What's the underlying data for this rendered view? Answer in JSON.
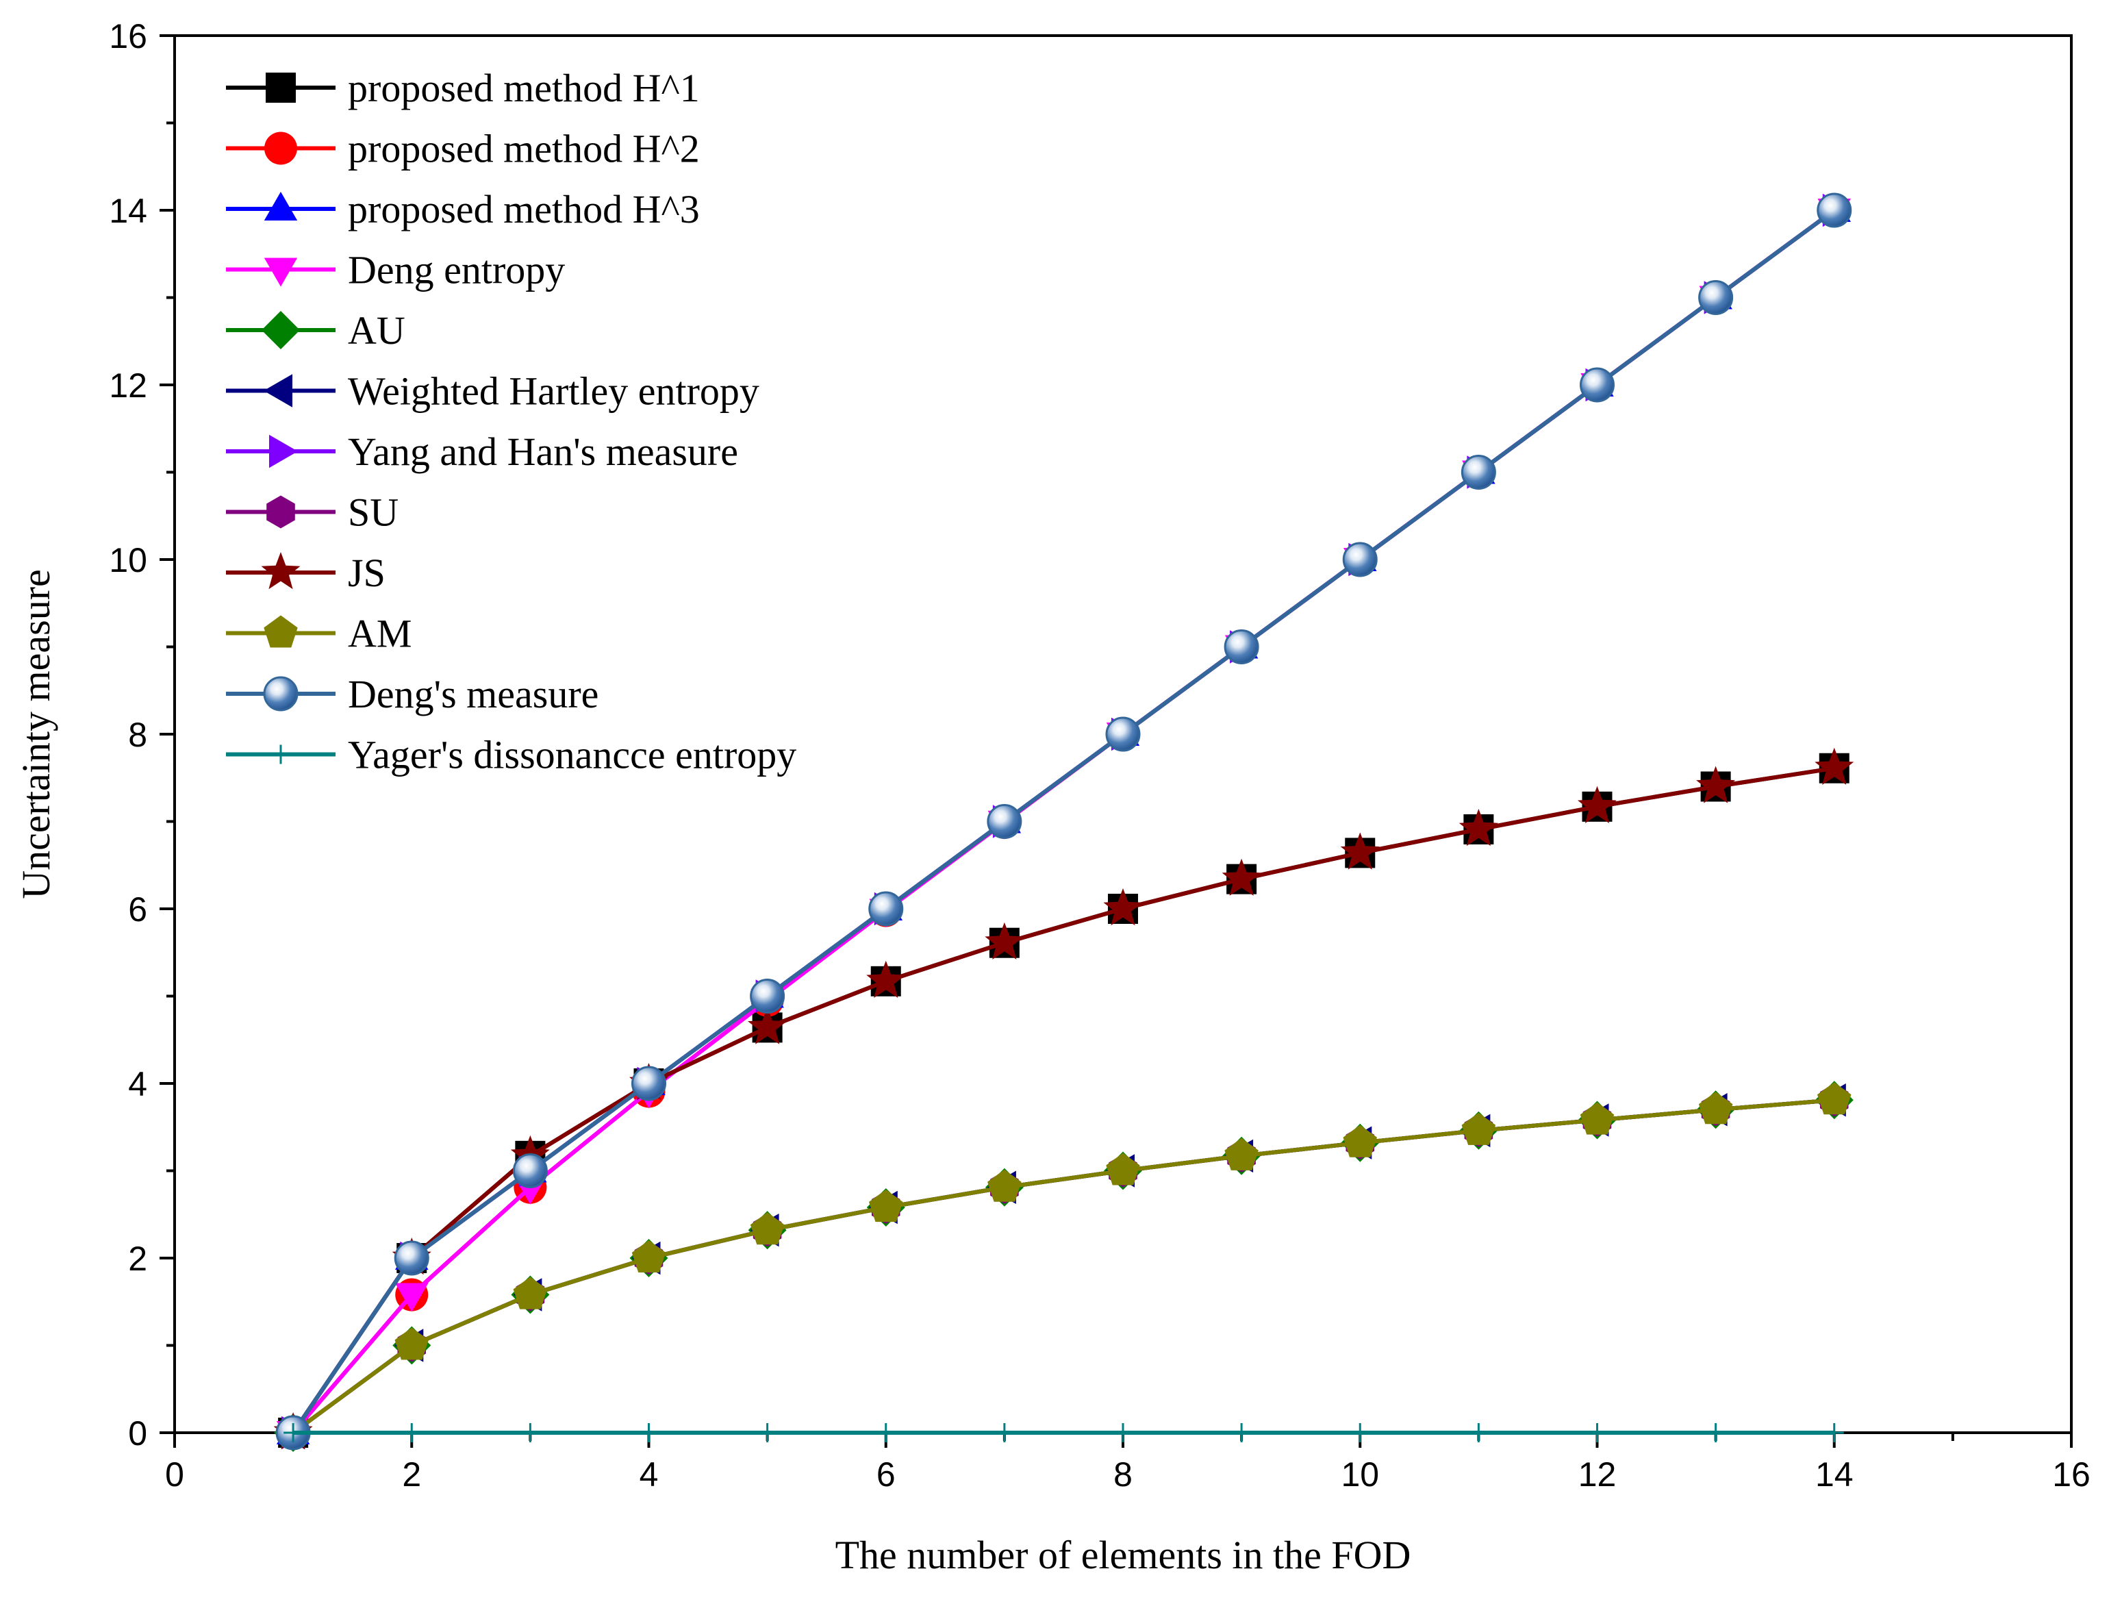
{
  "chart_data": {
    "type": "line",
    "title": "",
    "xlabel": "The number of elements in the FOD",
    "ylabel": "Uncertainty measure",
    "xlim": [
      0,
      16
    ],
    "ylim": [
      0,
      16
    ],
    "xticks": [
      0,
      2,
      4,
      6,
      8,
      10,
      12,
      14,
      16
    ],
    "yticks": [
      0,
      2,
      4,
      6,
      8,
      10,
      12,
      14,
      16
    ],
    "x": [
      1,
      2,
      3,
      4,
      5,
      6,
      7,
      8,
      9,
      10,
      11,
      12,
      13,
      14
    ],
    "legend_position": "top-left",
    "series": [
      {
        "name": "proposed method H^1",
        "color": "#000000",
        "marker": "square",
        "values": [
          0,
          2,
          3.17,
          4,
          4.64,
          5.17,
          5.61,
          6,
          6.34,
          6.64,
          6.91,
          7.17,
          7.4,
          7.61
        ]
      },
      {
        "name": "proposed method H^2",
        "color": "#ff0000",
        "marker": "circle",
        "values": [
          0,
          1.58,
          2.81,
          3.91,
          4.95,
          5.98,
          6.99,
          8,
          9,
          10,
          11,
          12,
          13,
          14
        ]
      },
      {
        "name": "proposed method H^3",
        "color": "#0000ff",
        "marker": "triangle-up",
        "values": [
          0,
          2,
          3,
          4,
          5,
          6,
          7,
          8,
          9,
          10,
          11,
          12,
          13,
          14
        ]
      },
      {
        "name": "Deng entropy",
        "color": "#ff00ff",
        "marker": "triangle-down",
        "values": [
          0,
          1.58,
          2.81,
          3.91,
          4.95,
          5.98,
          6.99,
          8,
          9,
          10,
          11,
          12,
          13,
          14
        ]
      },
      {
        "name": "AU",
        "color": "#008000",
        "marker": "diamond",
        "values": [
          0,
          1,
          1.58,
          2,
          2.32,
          2.58,
          2.81,
          3,
          3.17,
          3.32,
          3.46,
          3.58,
          3.7,
          3.81
        ]
      },
      {
        "name": "Weighted Hartley entropy",
        "color": "#000080",
        "marker": "triangle-left",
        "values": [
          0,
          1,
          1.58,
          2,
          2.32,
          2.58,
          2.81,
          3,
          3.17,
          3.32,
          3.46,
          3.58,
          3.7,
          3.81
        ]
      },
      {
        "name": "Yang and Han's measure",
        "color": "#8000ff",
        "marker": "triangle-right",
        "values": [
          0,
          2,
          3,
          4,
          5,
          6,
          7,
          8,
          9,
          10,
          11,
          12,
          13,
          14
        ]
      },
      {
        "name": "SU",
        "color": "#800080",
        "marker": "hexagon",
        "values": [
          0,
          1,
          1.58,
          2,
          2.32,
          2.58,
          2.81,
          3,
          3.17,
          3.32,
          3.46,
          3.58,
          3.7,
          3.81
        ]
      },
      {
        "name": "JS",
        "color": "#800000",
        "marker": "star",
        "values": [
          0,
          2,
          3.17,
          4,
          4.64,
          5.17,
          5.61,
          6,
          6.34,
          6.64,
          6.91,
          7.17,
          7.4,
          7.61
        ]
      },
      {
        "name": "AM",
        "color": "#808000",
        "marker": "pentagon",
        "values": [
          0,
          1,
          1.58,
          2,
          2.32,
          2.58,
          2.81,
          3,
          3.17,
          3.32,
          3.46,
          3.58,
          3.7,
          3.81
        ]
      },
      {
        "name": "Deng's measure",
        "color": "#336699",
        "marker": "sphere",
        "values": [
          0,
          2,
          3,
          4,
          5,
          6,
          7,
          8,
          9,
          10,
          11,
          12,
          13,
          14
        ]
      },
      {
        "name": "Yager's dissonancce entropy",
        "color": "#008080",
        "marker": "plus",
        "values": [
          0,
          0,
          0,
          0,
          0,
          0,
          0,
          0,
          0,
          0,
          0,
          0,
          0,
          0
        ]
      }
    ]
  }
}
